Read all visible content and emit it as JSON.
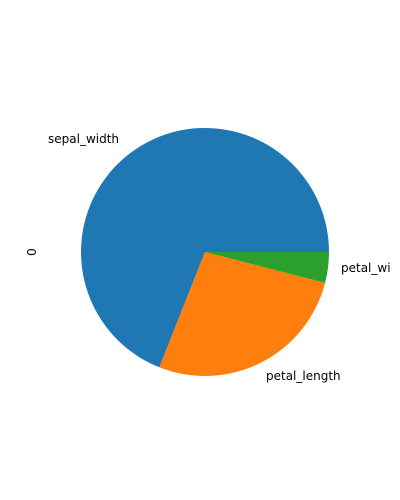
{
  "chart_data": {
    "type": "pie",
    "title": "",
    "ylabel": "0",
    "categories": [
      "sepal_width",
      "petal_length",
      "petal_width"
    ],
    "values": [
      0.69,
      0.27,
      0.04
    ],
    "colors": [
      "#1f77b4",
      "#ff7f0e",
      "#2ca02c"
    ],
    "start_angle_deg": 0,
    "direction": "counterclockwise",
    "labels_display": [
      "sepal_width",
      "petal_length",
      "petal_wi"
    ]
  }
}
